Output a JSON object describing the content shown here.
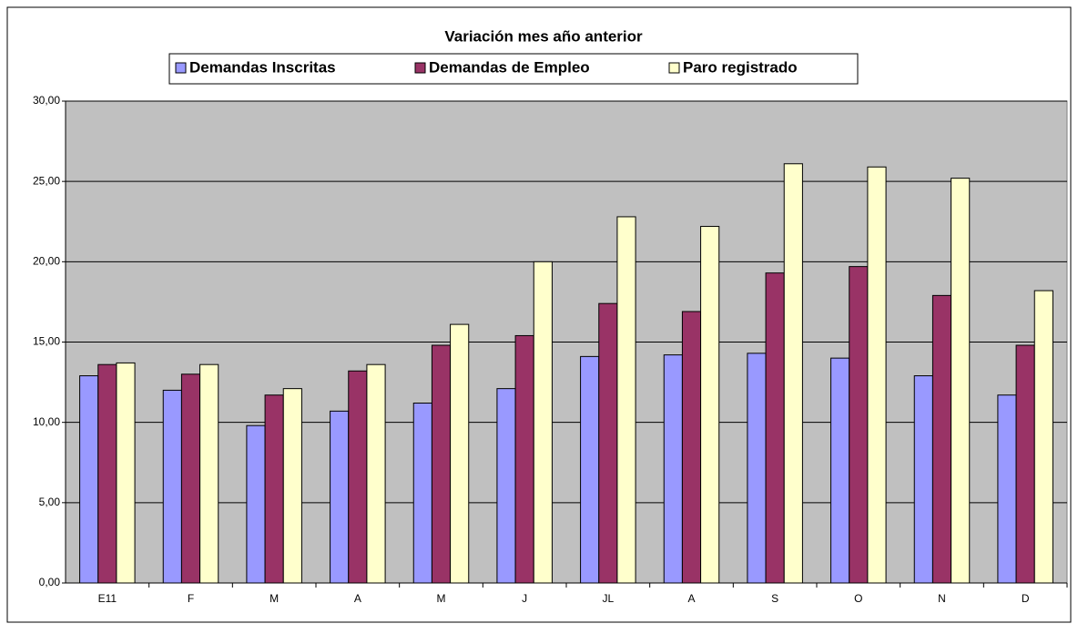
{
  "chart_data": {
    "type": "bar",
    "title": "Variación mes año anterior",
    "categories": [
      "E11",
      "F",
      "M",
      "A",
      "M",
      "J",
      "JL",
      "A",
      "S",
      "O",
      "N",
      "D"
    ],
    "series": [
      {
        "name": "Demandas Inscritas",
        "color": "#9999ff",
        "values": [
          12.9,
          12.0,
          9.8,
          10.7,
          11.2,
          12.1,
          14.1,
          14.2,
          14.3,
          14.0,
          12.9,
          11.7
        ]
      },
      {
        "name": "Demandas de Empleo",
        "color": "#993366",
        "values": [
          13.6,
          13.0,
          11.7,
          13.2,
          14.8,
          15.4,
          17.4,
          16.9,
          19.3,
          19.7,
          17.9,
          14.8
        ]
      },
      {
        "name": "Paro registrado",
        "color": "#ffffcc",
        "values": [
          13.7,
          13.6,
          12.1,
          13.6,
          16.1,
          20.0,
          22.8,
          22.2,
          26.1,
          25.9,
          25.2,
          18.2
        ]
      }
    ],
    "ylim": [
      0,
      30
    ],
    "yticks": [
      {
        "value": 0,
        "label": "0,00"
      },
      {
        "value": 5,
        "label": "5,00"
      },
      {
        "value": 10,
        "label": "10,00"
      },
      {
        "value": 15,
        "label": "15,00"
      },
      {
        "value": 20,
        "label": "20,00"
      },
      {
        "value": 25,
        "label": "25,00"
      },
      {
        "value": 30,
        "label": "30,00"
      }
    ],
    "grid": true,
    "plot_background": "#c0c0c0"
  }
}
